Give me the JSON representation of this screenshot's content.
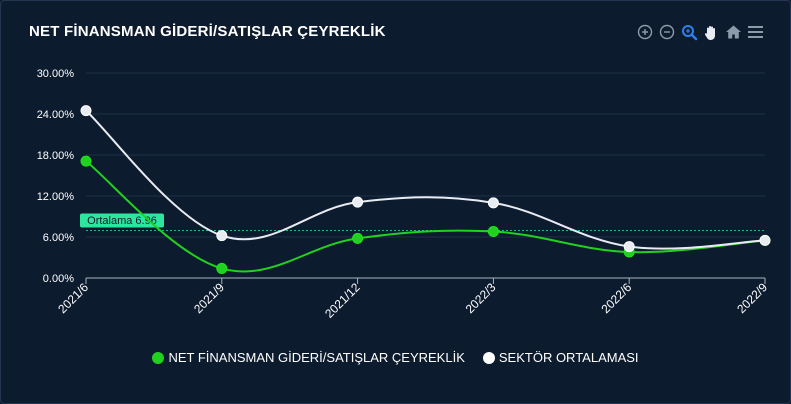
{
  "header": {
    "title": "NET FİNANSMAN GİDERİ/SATIŞLAR ÇEYREKLİK"
  },
  "toolbar": {
    "icons": [
      "zoom-in-icon",
      "zoom-out-icon",
      "selection-zoom-icon",
      "pan-hand-icon",
      "reset-home-icon",
      "menu-icon"
    ],
    "active_color": "#2f80ed",
    "inactive_color": "#8c9aab"
  },
  "chart_data": {
    "type": "line",
    "title": "NET FİNANSMAN GİDERİ/SATIŞLAR ÇEYREKLİK",
    "categories": [
      "2021/6",
      "2021/9",
      "2021/12",
      "2022/3",
      "2022/6",
      "2022/9"
    ],
    "ylim": [
      0,
      30
    ],
    "yticks": [
      "0.00%",
      "6.00%",
      "12.00%",
      "18.00%",
      "24.00%",
      "30.00%"
    ],
    "grid": true,
    "legend_position": "bottom",
    "series": [
      {
        "name": "NET FİNANSMAN GİDERİ/SATIŞLAR ÇEYREKLİK",
        "color": "#22d11f",
        "values": [
          17.1,
          1.4,
          5.8,
          6.8,
          3.8,
          5.5
        ]
      },
      {
        "name": "SEKTÖR ORTALAMASI",
        "color": "#e8ecf2",
        "values": [
          24.5,
          6.2,
          11.1,
          11.0,
          4.6,
          5.5
        ]
      }
    ],
    "annotation": {
      "label": "Ortalama 6.96",
      "value": 6.96,
      "color": "#21d08c"
    }
  }
}
